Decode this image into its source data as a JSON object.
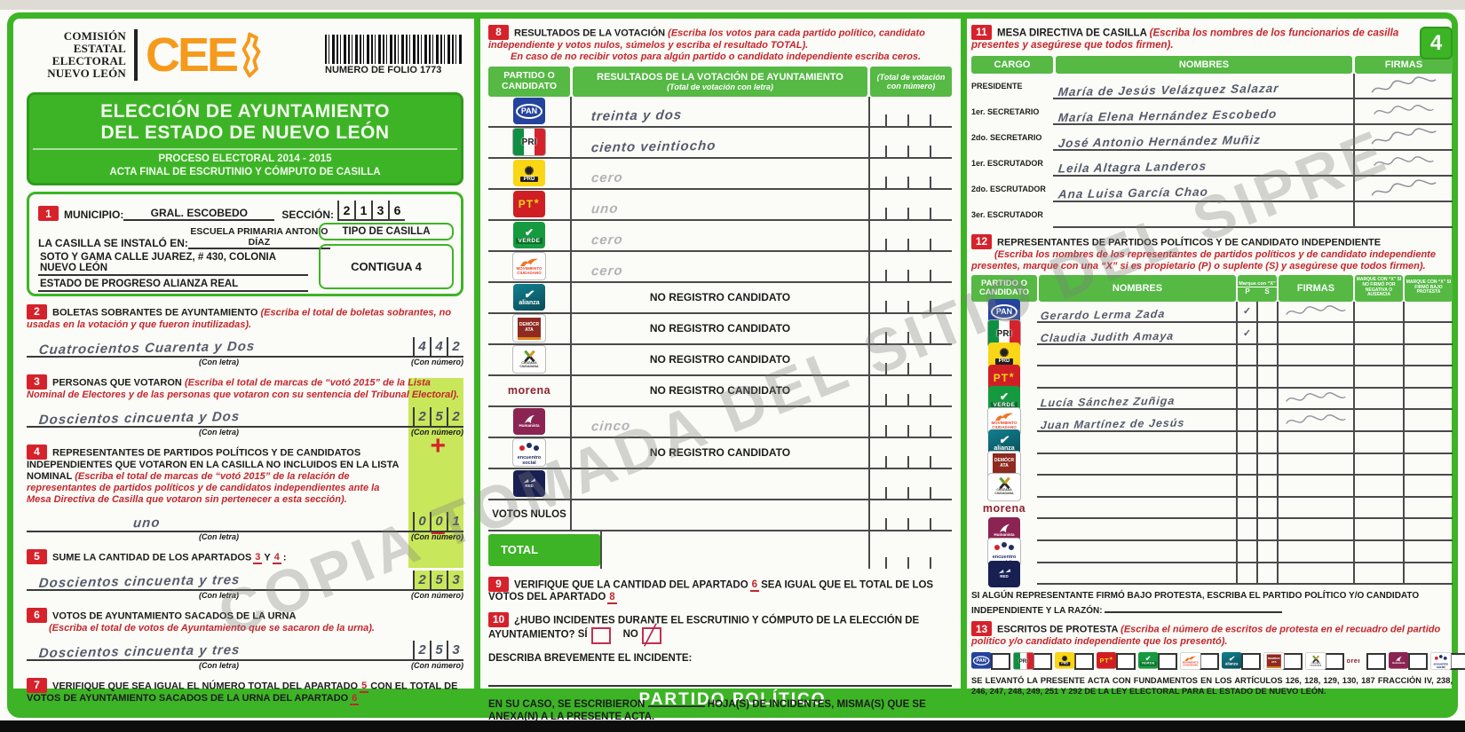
{
  "watermark": "COPIA TOMADA DEL SITIO DEL SIPRE",
  "bottom_bar": "PARTIDO POLÍTICO",
  "header": {
    "org_lines": [
      "COMISIÓN",
      "ESTATAL",
      "ELECTORAL",
      "NUEVO LEÓN"
    ],
    "logo_text": "CEE",
    "folio_label": "NUMERO DE FOLIO 1773"
  },
  "title_panel": {
    "line1": "ELECCIÓN DE AYUNTAMIENTO",
    "line2": "DEL ESTADO DE NUEVO LEÓN",
    "proceso": "PROCESO ELECTORAL  2014 - 2015",
    "acta": "ACTA FINAL DE ESCRUTINIO Y CÓMPUTO DE CASILLA"
  },
  "s1": {
    "num": "1",
    "municipio_label": "MUNICIPIO:",
    "municipio": "GRAL. ESCOBEDO",
    "seccion_label": "SECCIÓN:",
    "seccion_digits": [
      "2",
      "1",
      "3",
      "6"
    ],
    "casilla_label": "LA CASILLA SE INSTALÓ EN:",
    "casilla_line1": "ESCUELA PRIMARIA ANTONIO DÍAZ",
    "casilla_line2": "SOTO Y GAMA CALLE JUAREZ, # 430, COLONIA NUEVO LEÓN",
    "casilla_line3": "ESTADO DE PROGRESO ALIANZA REAL",
    "tipo_label": "TIPO DE CASILLA",
    "tipo": "CONTIGUA 4"
  },
  "s2": {
    "num": "2",
    "title": "BOLETAS SOBRANTES DE AYUNTAMIENTO ",
    "instr": "(Escriba el total de boletas sobrantes, no usadas en la votación y que fueron inutilizadas).",
    "letra": "Cuatrocientos Cuarenta y Dos",
    "digits": [
      "4",
      "4",
      "2"
    ],
    "con_letra": "(Con letra)",
    "con_numero": "(Con número)"
  },
  "s3": {
    "num": "3",
    "title": "PERSONAS QUE VOTARON ",
    "instr": "(Escriba el total de marcas de “votó 2015” de la Lista Nominal de Electores y de las personas que votaron con su sentencia del Tribunal Electoral).",
    "letra": "Doscientos cincuenta y Dos",
    "digits": [
      "2",
      "5",
      "2"
    ],
    "con_letra": "(Con letra)",
    "con_numero": "(Con número)"
  },
  "s4": {
    "num": "4",
    "title": "REPRESENTANTES DE PARTIDOS POLÍTICOS Y DE CANDIDATOS INDEPENDIENTES QUE VOTARON EN LA CASILLA NO INCLUIDOS EN LA LISTA NOMINAL ",
    "instr": "(Escriba el total de marcas de “votó 2015” de la relación de representantes de partidos políticos y de candidatos independientes ante la Mesa Directiva de Casilla que votaron sin pertenecer a esta sección).",
    "letra": "uno",
    "digits": [
      "0",
      "0",
      "1"
    ],
    "operator": "+",
    "con_letra": "(Con letra)",
    "con_numero": "(Con número)"
  },
  "s5": {
    "num": "5",
    "title": "SUME LA CANTIDAD DE LOS APARTADOS",
    "ref3": "3",
    "y_label": "Y",
    "ref4": "4",
    "colon": ":",
    "letra": "Doscientos cincuenta y tres",
    "digits": [
      "2",
      "5",
      "3"
    ],
    "operator": "=",
    "con_letra": "(Con letra)",
    "con_numero": "(Con número)"
  },
  "s6": {
    "num": "6",
    "title": "VOTOS DE AYUNTAMIENTO SACADOS DE LA URNA",
    "instr": "(Escriba el total de votos de Ayuntamiento que se sacaron de la urna).",
    "letra": "Doscientos cincuenta y tres",
    "digits": [
      "2",
      "5",
      "3"
    ],
    "con_letra": "(Con letra)",
    "con_numero": "(Con número)"
  },
  "s7": {
    "num": "7",
    "text1": "VERIFIQUE QUE SEA IGUAL EL NÚMERO TOTAL DEL APARTADO",
    "ref5": "5",
    "text2": "CON EL TOTAL DE VOTOS DE AYUNTAMIENTO SACADOS DE LA URNA DEL APARTADO",
    "ref6": "6"
  },
  "s8": {
    "num": "8",
    "title": "RESULTADOS DE LA VOTACIÓN ",
    "instr": "(Escriba los votos para cada partido político, candidato independiente y votos nulos, súmelos y escriba el resultado TOTAL).",
    "instr2": "En caso de no recibir votos para algún partido o candidato independiente escriba ceros.",
    "col_party": "PARTIDO O CANDIDATO",
    "col_result": "RESULTADOS DE LA VOTACIÓN DE AYUNTAMIENTO",
    "col_result_sub": "(Total de votación con letra)",
    "col_num": "(Total de votación con número)",
    "no_registro": "NO REGISTRO CANDIDATO",
    "votos_nulos_label": "VOTOS NULOS",
    "total_label": "TOTAL",
    "rows": [
      {
        "party": "pan",
        "letra": "treinta y dos",
        "faint": false,
        "no_registro": false
      },
      {
        "party": "pri",
        "letra": "ciento veintiocho",
        "faint": false,
        "no_registro": false
      },
      {
        "party": "prd",
        "letra": "cero",
        "faint": true,
        "no_registro": false
      },
      {
        "party": "pt",
        "letra": "uno",
        "faint": true,
        "no_registro": false
      },
      {
        "party": "verde",
        "letra": "cero",
        "faint": true,
        "no_registro": false
      },
      {
        "party": "mc",
        "letra": "cero",
        "faint": true,
        "no_registro": false
      },
      {
        "party": "alianza",
        "letra": "",
        "faint": true,
        "no_registro": true
      },
      {
        "party": "democrata",
        "letra": "",
        "faint": true,
        "no_registro": true
      },
      {
        "party": "cruzada",
        "letra": "",
        "faint": true,
        "no_registro": true
      },
      {
        "party": "morena",
        "letra": "",
        "faint": true,
        "no_registro": true
      },
      {
        "party": "humanista",
        "letra": "cinco",
        "faint": true,
        "no_registro": false
      },
      {
        "party": "encuentro",
        "letra": "",
        "faint": true,
        "no_registro": true
      },
      {
        "party": "red",
        "letra": "",
        "faint": true,
        "no_registro": false
      }
    ]
  },
  "s9": {
    "num": "9",
    "text1": "VERIFIQUE QUE LA CANTIDAD DEL APARTADO",
    "ref6": "6",
    "text2": "SEA IGUAL QUE EL TOTAL DE LOS VOTOS DEL APARTADO",
    "ref8": "8"
  },
  "s10": {
    "num": "10",
    "question": "¿HUBO INCIDENTES DURANTE EL ESCRUTINIO Y CÓMPUTO DE LA ELECCIÓN DE AYUNTAMIENTO?",
    "si": "SÍ",
    "no": "NO",
    "no_checked": true,
    "describa": "DESCRIBA BREVEMENTE EL INCIDENTE:",
    "en_su_caso1": "EN SU CASO, SE ESCRIBIERON",
    "en_su_caso2": "HOJA(S) DE INCIDENTES, MISMA(S) QUE SE ANEXA(N) A LA PRESENTE ACTA."
  },
  "s11": {
    "num": "11",
    "title": "MESA DIRECTIVA DE CASILLA ",
    "instr": "(Escriba los nombres de los funcionarios de casilla presentes y asegúrese que todos firmen).",
    "badge": "4",
    "col_cargo": "CARGO",
    "col_nombres": "NOMBRES",
    "col_firmas": "FIRMAS",
    "rows": [
      {
        "cargo": "PRESIDENTE",
        "nombre": "María de Jesús Velázquez Salazar",
        "firma": true
      },
      {
        "cargo": "1er. SECRETARIO",
        "nombre": "María Elena Hernández Escobedo",
        "firma": true
      },
      {
        "cargo": "2do. SECRETARIO",
        "nombre": "José Antonio Hernández Muñiz",
        "firma": true
      },
      {
        "cargo": "1er. ESCRUTADOR",
        "nombre": "Leila Altagra Landeros",
        "firma": true
      },
      {
        "cargo": "2do. ESCRUTADOR",
        "nombre": "Ana Luisa García Chao",
        "firma": true
      },
      {
        "cargo": "3er. ESCRUTADOR",
        "nombre": "",
        "firma": false
      }
    ]
  },
  "s12": {
    "num": "12",
    "title": "REPRESENTANTES DE PARTIDOS POLÍTICOS Y DE CANDIDATO INDEPENDIENTE",
    "instr": "(Escriba los nombres de los representantes de partidos políticos y de candidato independiente presentes, marque con una “X” si es propietario (P) o suplente (S) y asegúrese que todos firmen).",
    "col_party": "PARTIDO O CANDIDATO",
    "col_nombres": "NOMBRES",
    "col_marque": "Marque con “X”",
    "col_p": "P",
    "col_s": "S",
    "col_firmas": "FIRMAS",
    "col_m1": "MARQUE CON “X” SI NO FIRMÓ POR NEGATIVA O AUSENCIA",
    "col_m2": "MARQUE CON “X” SI FIRMÓ BAJO PROTESTA",
    "rows": [
      {
        "party": "pan",
        "nombre": "Gerardo Lerma Zada",
        "p": "✓",
        "s": "",
        "firma": true
      },
      {
        "party": "pri",
        "nombre": "Claudia Judith Amaya",
        "p": "✓",
        "s": "",
        "firma": false
      },
      {
        "party": "prd",
        "nombre": "",
        "p": "",
        "s": "",
        "firma": false
      },
      {
        "party": "pt",
        "nombre": "",
        "p": "",
        "s": "",
        "firma": false
      },
      {
        "party": "verde",
        "nombre": "Lucía Sánchez Zuñiga",
        "p": "",
        "s": "",
        "firma": true
      },
      {
        "party": "mc",
        "nombre": "Juan Martínez de Jesús",
        "p": "",
        "s": "",
        "firma": true
      },
      {
        "party": "alianza",
        "nombre": "",
        "p": "",
        "s": "",
        "firma": false
      },
      {
        "party": "democrata",
        "nombre": "",
        "p": "",
        "s": "",
        "firma": false
      },
      {
        "party": "cruzada",
        "nombre": "",
        "p": "",
        "s": "",
        "firma": false
      },
      {
        "party": "morena",
        "nombre": "",
        "p": "",
        "s": "",
        "firma": false
      },
      {
        "party": "humanista",
        "nombre": "",
        "p": "",
        "s": "",
        "firma": false
      },
      {
        "party": "encuentro",
        "nombre": "",
        "p": "",
        "s": "",
        "firma": false
      },
      {
        "party": "red",
        "nombre": "",
        "p": "",
        "s": "",
        "firma": false
      }
    ],
    "protesta_note": "SI ALGÚN REPRESENTANTE FIRMÓ BAJO PROTESTA, ESCRIBA EL PARTIDO POLÍTICO Y/O CANDIDATO INDEPENDIENTE Y LA RAZÓN:"
  },
  "s13": {
    "num": "13",
    "title": "ESCRITOS DE PROTESTA ",
    "instr": "(Escriba el número de escritos de protesta en el recuadro del partido político y/o candidato independiente que los presentó)."
  },
  "legal": "SE LEVANTÓ LA PRESENTE ACTA CON FUNDAMENTOS EN LOS ARTÍCULOS 126, 128, 129, 130, 187 FRACCIÓN IV, 238, 246, 247, 248, 249, 251 Y 292 DE LA LEY ELECTORAL PARA EL ESTADO DE NUEVO LEÓN.",
  "parties": [
    {
      "id": "pan",
      "label": "PAN"
    },
    {
      "id": "pri",
      "label": "PRI"
    },
    {
      "id": "prd",
      "label": "PRD"
    },
    {
      "id": "pt",
      "label": "PT"
    },
    {
      "id": "verde",
      "label": "VERDE"
    },
    {
      "id": "mc",
      "label": "MOVIMIENTO CIUDADANO"
    },
    {
      "id": "alianza",
      "label": "alianza"
    },
    {
      "id": "democrata",
      "label": "DEMÓCRATA"
    },
    {
      "id": "cruzada",
      "label": "CRUZADA CIUDADANA"
    },
    {
      "id": "morena",
      "label": "morena"
    },
    {
      "id": "humanista",
      "label": "Humanista"
    },
    {
      "id": "encuentro",
      "label": "encuentro social"
    },
    {
      "id": "red",
      "label": "RED"
    }
  ]
}
